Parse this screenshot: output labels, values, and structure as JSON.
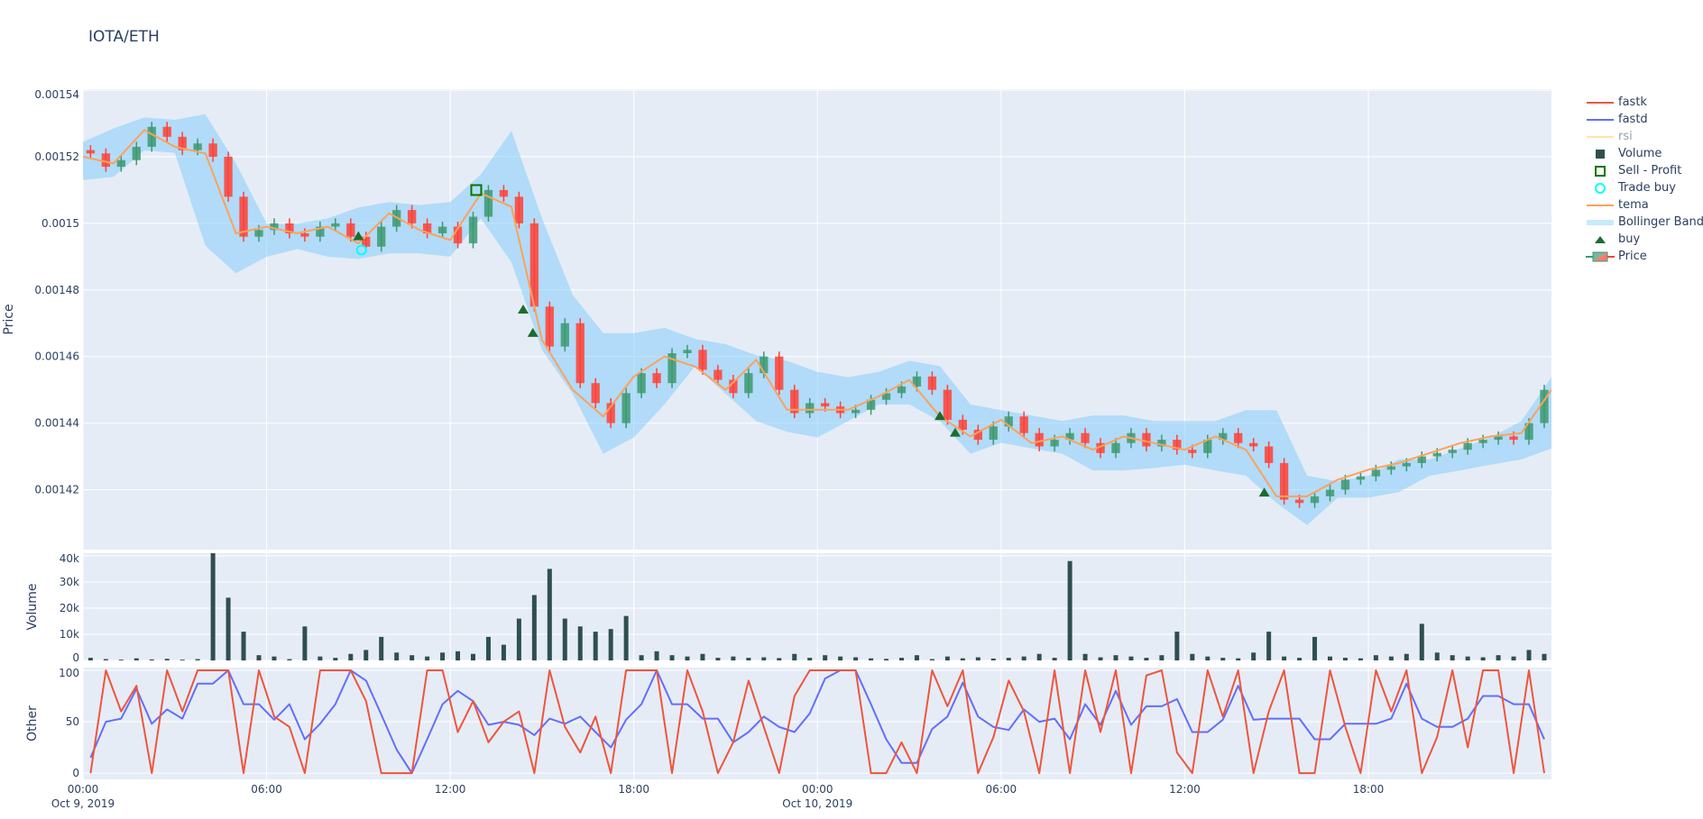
{
  "title": "IOTA/ETH",
  "colors": {
    "background": "#e5ecf6",
    "grid": "#ffffff",
    "increasing": "#3D9970",
    "decreasing": "#FF4136",
    "tema": "#FFA15A",
    "bollinger": "rgba(135,206,250,0.55)",
    "volume": "#2F4F4F",
    "fastk": "#EF553B",
    "fastd": "#636EFA",
    "rsi": "#FFE3A3",
    "buy": "#1E6B2E",
    "trade_buy": "#00FFFF",
    "sell_profit": "#007700"
  },
  "legend": {
    "placement": "right",
    "items": [
      {
        "label": "fastk",
        "icon": "line",
        "color": "#EF553B"
      },
      {
        "label": "fastd",
        "icon": "line",
        "color": "#636EFA"
      },
      {
        "label": "rsi",
        "icon": "line",
        "color": "#FFE3A3",
        "hidden": true
      },
      {
        "label": "Volume",
        "icon": "square-filled",
        "color": "#2F4F4F"
      },
      {
        "label": "Sell - Profit",
        "icon": "square-open",
        "color": "#007700"
      },
      {
        "label": "Trade buy",
        "icon": "circle-open",
        "color": "#00FFFF"
      },
      {
        "label": "tema",
        "icon": "line",
        "color": "#FFA15A"
      },
      {
        "label": "Bollinger Band",
        "icon": "band",
        "color": "#C9EAFB"
      },
      {
        "label": "buy",
        "icon": "triangle-up",
        "color": "#1E6B2E"
      },
      {
        "label": "Price",
        "icon": "candlestick",
        "color": "#3D9970"
      }
    ]
  },
  "chart_data": {
    "type": "candlestick",
    "x_range": [
      "2019-10-09 00:00",
      "2019-10-10 23:59"
    ],
    "x_ticks": [
      {
        "value": "2019-10-09 00:00",
        "label": "00:00",
        "sublabel": "Oct 9, 2019"
      },
      {
        "value": "2019-10-09 06:00",
        "label": "06:00"
      },
      {
        "value": "2019-10-09 12:00",
        "label": "12:00"
      },
      {
        "value": "2019-10-09 18:00",
        "label": "18:00"
      },
      {
        "value": "2019-10-10 00:00",
        "label": "00:00",
        "sublabel": "Oct 10, 2019"
      },
      {
        "value": "2019-10-10 06:00",
        "label": "06:00"
      },
      {
        "value": "2019-10-10 12:00",
        "label": "12:00"
      },
      {
        "value": "2019-10-10 18:00",
        "label": "18:00"
      }
    ],
    "grid": true,
    "panels": {
      "price": {
        "ylabel": "Price",
        "ylim": [
          0.001402,
          0.0015403
        ],
        "y_ticks": [
          {
            "value": 0.00154,
            "label": "0.00154"
          },
          {
            "value": 0.00152,
            "label": "0.00152"
          },
          {
            "value": 0.0015,
            "label": "0.0015"
          },
          {
            "value": 0.00148,
            "label": "0.00148"
          },
          {
            "value": 0.00146,
            "label": "0.00146"
          },
          {
            "value": 0.00144,
            "label": "0.00144"
          },
          {
            "value": 0.00142,
            "label": "0.00142"
          }
        ]
      },
      "volume": {
        "ylabel": "Volume",
        "ylim": [
          0,
          41000
        ],
        "y_ticks": [
          {
            "value": 0,
            "label": "0"
          },
          {
            "value": 10000,
            "label": "10k"
          },
          {
            "value": 20000,
            "label": "20k"
          },
          {
            "value": 30000,
            "label": "30k"
          },
          {
            "value": 40000,
            "label": "40k"
          }
        ]
      },
      "other": {
        "ylabel": "Other",
        "ylim": [
          -6,
          102.6
        ],
        "y_ticks": [
          {
            "value": 0,
            "label": "0"
          },
          {
            "value": 50,
            "label": "50"
          },
          {
            "value": 100,
            "label": "100"
          }
        ]
      }
    },
    "x_30min": [
      "2019-10-09 00:00",
      "2019-10-09 00:30",
      "2019-10-09 01:00",
      "2019-10-09 01:30",
      "2019-10-09 02:00",
      "2019-10-09 02:30",
      "2019-10-09 03:00",
      "2019-10-09 03:30",
      "2019-10-09 04:00",
      "2019-10-09 04:30",
      "2019-10-09 05:00",
      "2019-10-09 05:30",
      "2019-10-09 06:00",
      "2019-10-09 06:30",
      "2019-10-09 07:00",
      "2019-10-09 07:30",
      "2019-10-09 08:00",
      "2019-10-09 08:30",
      "2019-10-09 09:00",
      "2019-10-09 09:30",
      "2019-10-09 10:00",
      "2019-10-09 10:30",
      "2019-10-09 11:00",
      "2019-10-09 11:30",
      "2019-10-09 12:00",
      "2019-10-09 12:30",
      "2019-10-09 13:00",
      "2019-10-09 13:30",
      "2019-10-09 14:00",
      "2019-10-09 14:30",
      "2019-10-09 15:00",
      "2019-10-09 15:30",
      "2019-10-09 16:00",
      "2019-10-09 16:30",
      "2019-10-09 17:00",
      "2019-10-09 17:30",
      "2019-10-09 18:00",
      "2019-10-09 18:30",
      "2019-10-09 19:00",
      "2019-10-09 19:30",
      "2019-10-09 20:00",
      "2019-10-09 20:30",
      "2019-10-09 21:00",
      "2019-10-09 21:30",
      "2019-10-09 22:00",
      "2019-10-09 22:30",
      "2019-10-09 23:00",
      "2019-10-09 23:30",
      "2019-10-10 00:00",
      "2019-10-10 00:30",
      "2019-10-10 01:00",
      "2019-10-10 01:30",
      "2019-10-10 02:00",
      "2019-10-10 02:30",
      "2019-10-10 03:00",
      "2019-10-10 03:30",
      "2019-10-10 04:00",
      "2019-10-10 04:30",
      "2019-10-10 05:00",
      "2019-10-10 05:30",
      "2019-10-10 06:00",
      "2019-10-10 06:30",
      "2019-10-10 07:00",
      "2019-10-10 07:30",
      "2019-10-10 08:00",
      "2019-10-10 08:30",
      "2019-10-10 09:00",
      "2019-10-10 09:30",
      "2019-10-10 10:00",
      "2019-10-10 10:30",
      "2019-10-10 11:00",
      "2019-10-10 11:30",
      "2019-10-10 12:00",
      "2019-10-10 12:30",
      "2019-10-10 13:00",
      "2019-10-10 13:30",
      "2019-10-10 14:00",
      "2019-10-10 14:30",
      "2019-10-10 15:00",
      "2019-10-10 15:30",
      "2019-10-10 16:00",
      "2019-10-10 16:30",
      "2019-10-10 17:00",
      "2019-10-10 17:30",
      "2019-10-10 18:00",
      "2019-10-10 18:30",
      "2019-10-10 19:00",
      "2019-10-10 19:30",
      "2019-10-10 20:00",
      "2019-10-10 20:30",
      "2019-10-10 21:00",
      "2019-10-10 21:30",
      "2019-10-10 22:00",
      "2019-10-10 22:30",
      "2019-10-10 23:00",
      "2019-10-10 23:30"
    ],
    "close": [
      0.001521,
      0.001517,
      0.001519,
      0.001523,
      0.001529,
      0.001526,
      0.001522,
      0.001524,
      0.00152,
      0.001508,
      0.001496,
      0.001498,
      0.0015,
      0.001497,
      0.001496,
      0.001499,
      0.0015,
      0.001496,
      0.001493,
      0.001499,
      0.001504,
      0.0015,
      0.001497,
      0.001499,
      0.001494,
      0.001502,
      0.00151,
      0.001508,
      0.0015,
      0.001475,
      0.001463,
      0.00147,
      0.001452,
      0.001446,
      0.00144,
      0.001449,
      0.001455,
      0.001452,
      0.001461,
      0.001462,
      0.001456,
      0.001453,
      0.001449,
      0.001455,
      0.00146,
      0.00145,
      0.001443,
      0.001446,
      0.001445,
      0.001443,
      0.001444,
      0.001447,
      0.001449,
      0.001451,
      0.001454,
      0.00145,
      0.001441,
      0.001438,
      0.001435,
      0.001439,
      0.001442,
      0.001437,
      0.001433,
      0.001435,
      0.001437,
      0.001434,
      0.001431,
      0.001434,
      0.001437,
      0.001433,
      0.001435,
      0.001432,
      0.001431,
      0.001435,
      0.001437,
      0.001434,
      0.001433,
      0.001428,
      0.001417,
      0.001416,
      0.001418,
      0.00142,
      0.001423,
      0.001424,
      0.001426,
      0.001427,
      0.001428,
      0.00143,
      0.001431,
      0.001432,
      0.001434,
      0.001435,
      0.001436,
      0.001435,
      0.00144,
      0.00145
    ],
    "volume": [
      1000,
      500,
      300,
      800,
      400,
      600,
      300,
      500,
      41000,
      24000,
      11000,
      2000,
      1500,
      500,
      13000,
      1500,
      1000,
      2500,
      4000,
      9000,
      3000,
      2000,
      1500,
      3000,
      3500,
      2500,
      9000,
      6000,
      16000,
      25000,
      35000,
      16000,
      13000,
      11000,
      12000,
      17000,
      2000,
      3500,
      2000,
      1500,
      2500,
      1000,
      1500,
      1000,
      1200,
      900,
      2500,
      1000,
      2000,
      1500,
      1200,
      800,
      600,
      1000,
      2000,
      500,
      1500,
      800,
      1200,
      700,
      1000,
      1500,
      2500,
      1000,
      38000,
      2500,
      1200,
      2000,
      1500,
      1000,
      2000,
      11000,
      2500,
      1500,
      1000,
      800,
      3000,
      11000,
      1500,
      1000,
      9000,
      1500,
      1000,
      800,
      2000,
      1500,
      2500,
      14000,
      3000,
      2000,
      1500,
      1200,
      2000,
      1500,
      4000,
      2500
    ],
    "fastk": [
      0,
      100,
      60,
      85,
      0,
      100,
      60,
      100,
      100,
      100,
      0,
      100,
      55,
      45,
      0,
      100,
      100,
      100,
      70,
      0,
      0,
      0,
      100,
      100,
      40,
      70,
      30,
      50,
      60,
      0,
      100,
      45,
      20,
      55,
      0,
      100,
      100,
      100,
      0,
      100,
      60,
      0,
      30,
      90,
      45,
      0,
      75,
      100,
      100,
      100,
      100,
      0,
      0,
      30,
      0,
      100,
      65,
      100,
      0,
      35,
      90,
      60,
      0,
      100,
      0,
      100,
      40,
      100,
      0,
      95,
      100,
      20,
      0,
      100,
      55,
      100,
      0,
      60,
      100,
      0,
      0,
      100,
      45,
      0,
      100,
      60,
      100,
      0,
      35,
      100,
      25,
      100,
      100,
      0,
      100,
      0
    ],
    "fastd": [
      15,
      50,
      53,
      82,
      48,
      62,
      53,
      87,
      87,
      100,
      67,
      67,
      52,
      67,
      33,
      48,
      67,
      100,
      90,
      57,
      23,
      0,
      33,
      67,
      80,
      70,
      47,
      50,
      47,
      37,
      53,
      48,
      55,
      40,
      25,
      52,
      67,
      100,
      67,
      67,
      53,
      53,
      30,
      40,
      55,
      45,
      40,
      58,
      92,
      100,
      100,
      67,
      33,
      10,
      10,
      43,
      55,
      88,
      55,
      45,
      42,
      62,
      50,
      53,
      33,
      67,
      47,
      80,
      47,
      65,
      65,
      72,
      40,
      40,
      52,
      85,
      52,
      53,
      53,
      53,
      33,
      33,
      48,
      48,
      48,
      53,
      87,
      53,
      45,
      45,
      53,
      75,
      75,
      67,
      67,
      33
    ],
    "x_hourly": [
      "2019-10-09 00:00",
      "2019-10-09 01:00",
      "2019-10-09 02:00",
      "2019-10-09 03:00",
      "2019-10-09 04:00",
      "2019-10-09 05:00",
      "2019-10-09 06:00",
      "2019-10-09 07:00",
      "2019-10-09 08:00",
      "2019-10-09 09:00",
      "2019-10-09 10:00",
      "2019-10-09 11:00",
      "2019-10-09 12:00",
      "2019-10-09 13:00",
      "2019-10-09 14:00",
      "2019-10-09 15:00",
      "2019-10-09 16:00",
      "2019-10-09 17:00",
      "2019-10-09 18:00",
      "2019-10-09 19:00",
      "2019-10-09 20:00",
      "2019-10-09 21:00",
      "2019-10-09 22:00",
      "2019-10-09 23:00",
      "2019-10-10 00:00",
      "2019-10-10 01:00",
      "2019-10-10 02:00",
      "2019-10-10 03:00",
      "2019-10-10 04:00",
      "2019-10-10 05:00",
      "2019-10-10 06:00",
      "2019-10-10 07:00",
      "2019-10-10 08:00",
      "2019-10-10 09:00",
      "2019-10-10 10:00",
      "2019-10-10 11:00",
      "2019-10-10 12:00",
      "2019-10-10 13:00",
      "2019-10-10 14:00",
      "2019-10-10 15:00",
      "2019-10-10 16:00",
      "2019-10-10 17:00",
      "2019-10-10 18:00",
      "2019-10-10 19:00",
      "2019-10-10 20:00",
      "2019-10-10 21:00",
      "2019-10-10 22:00",
      "2019-10-10 23:00",
      "2019-10-10 23:59"
    ],
    "tema": [
      0.00152,
      0.001518,
      0.001528,
      0.001523,
      0.001521,
      0.001497,
      0.001499,
      0.001497,
      0.001499,
      0.001494,
      0.001503,
      0.001498,
      0.001495,
      0.001509,
      0.001505,
      0.001465,
      0.00145,
      0.001442,
      0.001454,
      0.00146,
      0.001457,
      0.00145,
      0.001459,
      0.001444,
      0.001444,
      0.001444,
      0.001448,
      0.001453,
      0.001442,
      0.001436,
      0.001441,
      0.001434,
      0.001436,
      0.001432,
      0.001436,
      0.001434,
      0.001432,
      0.001436,
      0.001432,
      0.001418,
      0.001418,
      0.001423,
      0.001426,
      0.001428,
      0.001431,
      0.001434,
      0.001436,
      0.001437,
      0.00145
    ],
    "bb_upper": [
      0.0015245,
      0.0015285,
      0.0015318,
      0.0015311,
      0.0015328,
      0.001518,
      0.0014999,
      0.0014999,
      0.0015015,
      0.0015048,
      0.0015064,
      0.0015055,
      0.0015064,
      0.0015147,
      0.0015278,
      0.0015015,
      0.0014785,
      0.001467,
      0.001467,
      0.0014686,
      0.0014653,
      0.0014637,
      0.0014604,
      0.0014587,
      0.0014554,
      0.0014538,
      0.0014554,
      0.0014587,
      0.0014571,
      0.0014456,
      0.0014439,
      0.0014423,
      0.0014406,
      0.0014423,
      0.0014423,
      0.0014406,
      0.0014406,
      0.0014406,
      0.0014439,
      0.0014439,
      0.0014242,
      0.0014225,
      0.0014242,
      0.0014291,
      0.0014291,
      0.0014324,
      0.0014357,
      0.0014406,
      0.0014538
    ],
    "bb_lower": [
      0.001513,
      0.001514,
      0.0015219,
      0.0015212,
      0.0014933,
      0.001485,
      0.00149,
      0.0014923,
      0.00149,
      0.0014893,
      0.001491,
      0.001491,
      0.00149,
      0.0015015,
      0.0014883,
      0.001462,
      0.0014488,
      0.0014308,
      0.0014357,
      0.0014456,
      0.0014571,
      0.0014488,
      0.0014406,
      0.0014374,
      0.0014357,
      0.0014406,
      0.0014456,
      0.0014456,
      0.0014406,
      0.0014308,
      0.0014341,
      0.0014324,
      0.0014308,
      0.0014258,
      0.0014258,
      0.0014265,
      0.0014275,
      0.0014258,
      0.0014242,
      0.001416,
      0.0014094,
      0.0014176,
      0.0014176,
      0.0014193,
      0.0014242,
      0.0014258,
      0.0014275,
      0.0014291,
      0.0014324
    ],
    "buy": [
      {
        "x": "2019-10-09 09:00",
        "y": 0.001496
      },
      {
        "x": "2019-10-09 14:23",
        "y": 0.001474
      },
      {
        "x": "2019-10-09 14:42",
        "y": 0.001467
      },
      {
        "x": "2019-10-10 04:00",
        "y": 0.001442
      },
      {
        "x": "2019-10-10 04:30",
        "y": 0.001437
      },
      {
        "x": "2019-10-10 14:36",
        "y": 0.001419
      }
    ],
    "trade_buy": [
      {
        "x": "2019-10-09 09:06",
        "y": 0.001492
      }
    ],
    "sell_profit": [
      {
        "x": "2019-10-09 12:51",
        "y": 0.00151
      }
    ]
  }
}
